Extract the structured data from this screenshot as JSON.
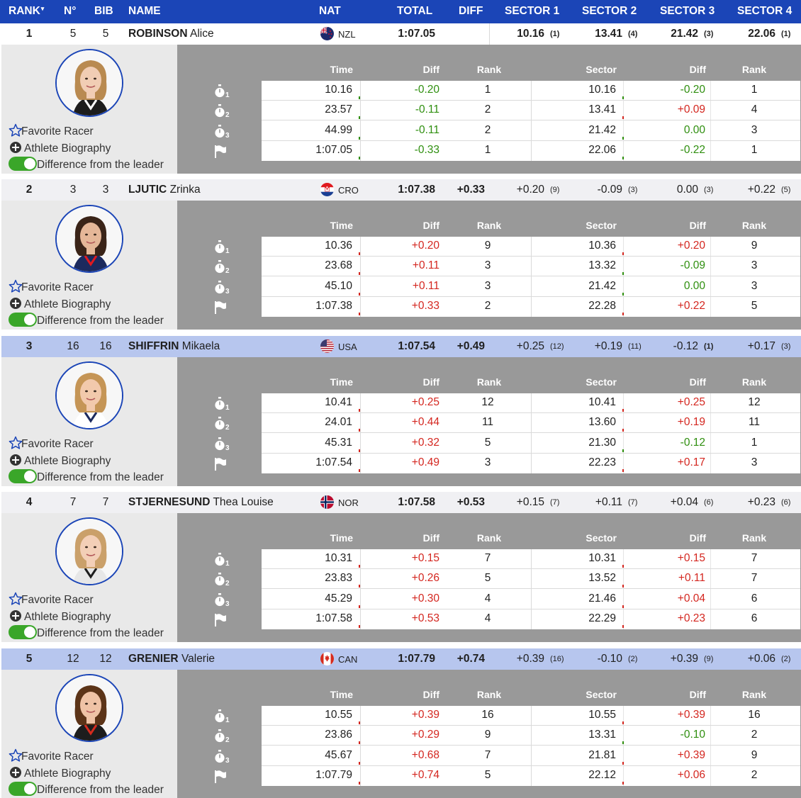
{
  "header": {
    "rank": "RANK",
    "no": "N°",
    "bib": "BIB",
    "name": "NAME",
    "nat": "NAT",
    "total": "TOTAL",
    "diff": "DIFF",
    "sector1": "SECTOR 1",
    "sector2": "SECTOR 2",
    "sector3": "SECTOR 3",
    "sector4": "SECTOR 4",
    "sort_icon": "caret-down-icon"
  },
  "detail_labels": {
    "time": "Time",
    "diff": "Diff",
    "rank": "Rank",
    "sector": "Sector",
    "sector_diff": "Diff",
    "sector_rank": "Rank",
    "favorite": "Favorite Racer",
    "biography": "Athlete Biography",
    "difference_toggle": "Difference from the leader",
    "toggle_state": "on"
  },
  "colors": {
    "header_blue": "#1b45b7",
    "highlight_row": "#b7c6ee",
    "negative": "#2f8f0f",
    "positive": "#d4261f"
  },
  "athletes": [
    {
      "rank": "1",
      "no": "5",
      "bib": "5",
      "last": "ROBINSON",
      "first": "Alice",
      "nat": "NZL",
      "flag": "nzl-flag-icon",
      "total": "1:07.05",
      "diff": "",
      "sectors": [
        {
          "v": "10.16",
          "r": "(1)"
        },
        {
          "v": "13.41",
          "r": "(4)"
        },
        {
          "v": "21.42",
          "r": "(3)"
        },
        {
          "v": "22.06",
          "r": "(1)"
        }
      ],
      "sector_bold": true,
      "highlight": false,
      "splits": [
        {
          "icon": "stopwatch-1-icon",
          "sub": "1",
          "time": "10.16",
          "diff": "-0.20",
          "rank": "1",
          "sector": "10.16",
          "sdiff": "-0.20",
          "srank": "1"
        },
        {
          "icon": "stopwatch-2-icon",
          "sub": "2",
          "time": "23.57",
          "diff": "-0.11",
          "rank": "2",
          "sector": "13.41",
          "sdiff": "+0.09",
          "srank": "4"
        },
        {
          "icon": "stopwatch-3-icon",
          "sub": "3",
          "time": "44.99",
          "diff": "-0.11",
          "rank": "2",
          "sector": "21.42",
          "sdiff": "0.00",
          "srank": "3"
        },
        {
          "icon": "finish-flag-icon",
          "sub": "",
          "time": "1:07.05",
          "diff": "-0.33",
          "rank": "1",
          "sector": "22.06",
          "sdiff": "-0.22",
          "srank": "1"
        }
      ]
    },
    {
      "rank": "2",
      "no": "3",
      "bib": "3",
      "last": "LJUTIC",
      "first": "Zrinka",
      "nat": "CRO",
      "flag": "cro-flag-icon",
      "total": "1:07.38",
      "diff": "+0.33",
      "sectors": [
        {
          "v": "+0.20",
          "r": "(9)"
        },
        {
          "v": "-0.09",
          "r": "(3)"
        },
        {
          "v": "0.00",
          "r": "(3)"
        },
        {
          "v": "+0.22",
          "r": "(5)"
        }
      ],
      "sector_bold": false,
      "highlight": false,
      "splits": [
        {
          "icon": "stopwatch-1-icon",
          "sub": "1",
          "time": "10.36",
          "diff": "+0.20",
          "rank": "9",
          "sector": "10.36",
          "sdiff": "+0.20",
          "srank": "9"
        },
        {
          "icon": "stopwatch-2-icon",
          "sub": "2",
          "time": "23.68",
          "diff": "+0.11",
          "rank": "3",
          "sector": "13.32",
          "sdiff": "-0.09",
          "srank": "3"
        },
        {
          "icon": "stopwatch-3-icon",
          "sub": "3",
          "time": "45.10",
          "diff": "+0.11",
          "rank": "3",
          "sector": "21.42",
          "sdiff": "0.00",
          "srank": "3"
        },
        {
          "icon": "finish-flag-icon",
          "sub": "",
          "time": "1:07.38",
          "diff": "+0.33",
          "rank": "2",
          "sector": "22.28",
          "sdiff": "+0.22",
          "srank": "5"
        }
      ]
    },
    {
      "rank": "3",
      "no": "16",
      "bib": "16",
      "last": "SHIFFRIN",
      "first": "Mikaela",
      "nat": "USA",
      "flag": "usa-flag-icon",
      "total": "1:07.54",
      "diff": "+0.49",
      "sectors": [
        {
          "v": "+0.25",
          "r": "(12)"
        },
        {
          "v": "+0.19",
          "r": "(11)"
        },
        {
          "v": "-0.12",
          "r": "(1)",
          "rb": true
        },
        {
          "v": "+0.17",
          "r": "(3)"
        }
      ],
      "sector_bold": false,
      "highlight": true,
      "splits": [
        {
          "icon": "stopwatch-1-icon",
          "sub": "1",
          "time": "10.41",
          "diff": "+0.25",
          "rank": "12",
          "sector": "10.41",
          "sdiff": "+0.25",
          "srank": "12"
        },
        {
          "icon": "stopwatch-2-icon",
          "sub": "2",
          "time": "24.01",
          "diff": "+0.44",
          "rank": "11",
          "sector": "13.60",
          "sdiff": "+0.19",
          "srank": "11"
        },
        {
          "icon": "stopwatch-3-icon",
          "sub": "3",
          "time": "45.31",
          "diff": "+0.32",
          "rank": "5",
          "sector": "21.30",
          "sdiff": "-0.12",
          "srank": "1"
        },
        {
          "icon": "finish-flag-icon",
          "sub": "",
          "time": "1:07.54",
          "diff": "+0.49",
          "rank": "3",
          "sector": "22.23",
          "sdiff": "+0.17",
          "srank": "3"
        }
      ]
    },
    {
      "rank": "4",
      "no": "7",
      "bib": "7",
      "last": "STJERNESUND",
      "first": "Thea Louise",
      "nat": "NOR",
      "flag": "nor-flag-icon",
      "total": "1:07.58",
      "diff": "+0.53",
      "sectors": [
        {
          "v": "+0.15",
          "r": "(7)"
        },
        {
          "v": "+0.11",
          "r": "(7)"
        },
        {
          "v": "+0.04",
          "r": "(6)"
        },
        {
          "v": "+0.23",
          "r": "(6)"
        }
      ],
      "sector_bold": false,
      "highlight": false,
      "splits": [
        {
          "icon": "stopwatch-1-icon",
          "sub": "1",
          "time": "10.31",
          "diff": "+0.15",
          "rank": "7",
          "sector": "10.31",
          "sdiff": "+0.15",
          "srank": "7"
        },
        {
          "icon": "stopwatch-2-icon",
          "sub": "2",
          "time": "23.83",
          "diff": "+0.26",
          "rank": "5",
          "sector": "13.52",
          "sdiff": "+0.11",
          "srank": "7"
        },
        {
          "icon": "stopwatch-3-icon",
          "sub": "3",
          "time": "45.29",
          "diff": "+0.30",
          "rank": "4",
          "sector": "21.46",
          "sdiff": "+0.04",
          "srank": "6"
        },
        {
          "icon": "finish-flag-icon",
          "sub": "",
          "time": "1:07.58",
          "diff": "+0.53",
          "rank": "4",
          "sector": "22.29",
          "sdiff": "+0.23",
          "srank": "6"
        }
      ]
    },
    {
      "rank": "5",
      "no": "12",
      "bib": "12",
      "last": "GRENIER",
      "first": "Valerie",
      "nat": "CAN",
      "flag": "can-flag-icon",
      "total": "1:07.79",
      "diff": "+0.74",
      "sectors": [
        {
          "v": "+0.39",
          "r": "(16)"
        },
        {
          "v": "-0.10",
          "r": "(2)"
        },
        {
          "v": "+0.39",
          "r": "(9)"
        },
        {
          "v": "+0.06",
          "r": "(2)"
        }
      ],
      "sector_bold": false,
      "highlight": true,
      "splits": [
        {
          "icon": "stopwatch-1-icon",
          "sub": "1",
          "time": "10.55",
          "diff": "+0.39",
          "rank": "16",
          "sector": "10.55",
          "sdiff": "+0.39",
          "srank": "16"
        },
        {
          "icon": "stopwatch-2-icon",
          "sub": "2",
          "time": "23.86",
          "diff": "+0.29",
          "rank": "9",
          "sector": "13.31",
          "sdiff": "-0.10",
          "srank": "2"
        },
        {
          "icon": "stopwatch-3-icon",
          "sub": "3",
          "time": "45.67",
          "diff": "+0.68",
          "rank": "7",
          "sector": "21.81",
          "sdiff": "+0.39",
          "srank": "9"
        },
        {
          "icon": "finish-flag-icon",
          "sub": "",
          "time": "1:07.79",
          "diff": "+0.74",
          "rank": "5",
          "sector": "22.12",
          "sdiff": "+0.06",
          "srank": "2"
        }
      ]
    }
  ]
}
